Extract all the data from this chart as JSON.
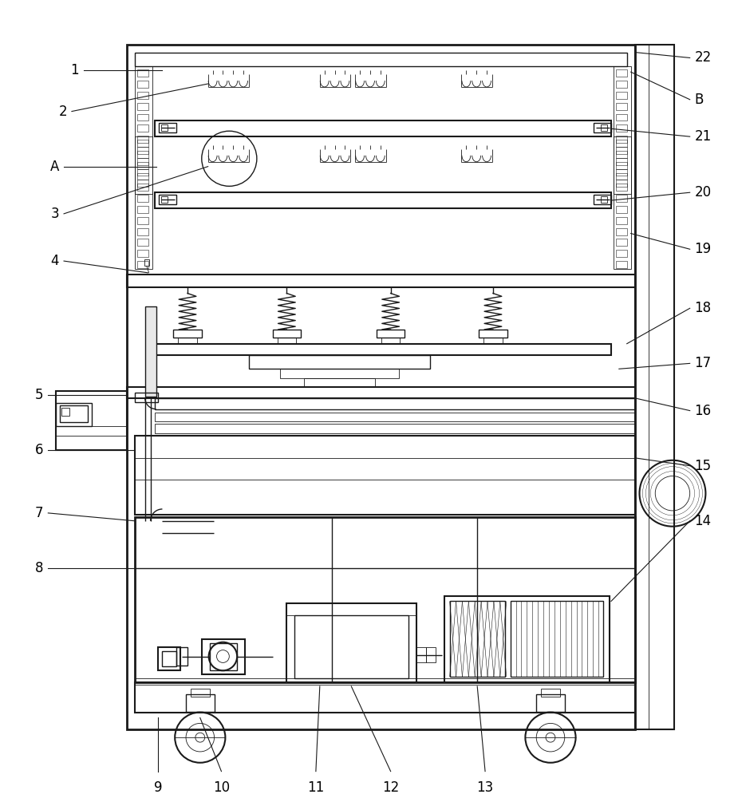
{
  "bg_color": "#ffffff",
  "line_color": "#1a1a1a",
  "label_color": "#000000",
  "fig_width": 9.25,
  "fig_height": 10.0
}
